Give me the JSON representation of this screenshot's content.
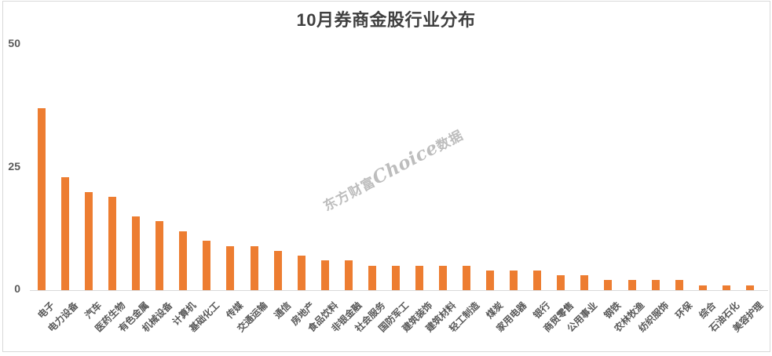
{
  "title": "10月券商金股行业分布",
  "watermark": {
    "prefix": "东方财富",
    "brand": "Choice",
    "suffix": "数据"
  },
  "chart_data": {
    "type": "bar",
    "title": "10月券商金股行业分布",
    "categories": [
      "电子",
      "电力设备",
      "汽车",
      "医药生物",
      "有色金属",
      "机械设备",
      "计算机",
      "基础化工",
      "传媒",
      "交通运输",
      "通信",
      "房地产",
      "食品饮料",
      "非银金融",
      "社会服务",
      "国防军工",
      "建筑装饰",
      "建筑材料",
      "轻工制造",
      "煤炭",
      "家用电器",
      "银行",
      "商贸零售",
      "公用事业",
      "钢铁",
      "农林牧渔",
      "纺织服饰",
      "环保",
      "综合",
      "石油石化",
      "美容护理"
    ],
    "values": [
      37,
      23,
      20,
      19,
      15,
      14,
      12,
      10,
      9,
      9,
      8,
      7,
      6,
      6,
      5,
      5,
      5,
      5,
      5,
      4,
      4,
      4,
      3,
      3,
      2,
      2,
      2,
      2,
      1,
      1,
      1
    ],
    "xlabel": "",
    "ylabel": "",
    "ylim": [
      0,
      50
    ],
    "yticks": [
      0,
      25,
      50
    ],
    "grid": false,
    "legend": false,
    "x_label_rotation_deg": -45,
    "bar_color": "#ED7D31"
  },
  "colors": {
    "bar": "#ED7D31",
    "title": "#404040",
    "axis_labels": "#595959",
    "axis_line": "#D9D9D9",
    "frame": "#D9D9D9",
    "watermark": "#BDBDBD",
    "background": "#FFFFFF"
  }
}
